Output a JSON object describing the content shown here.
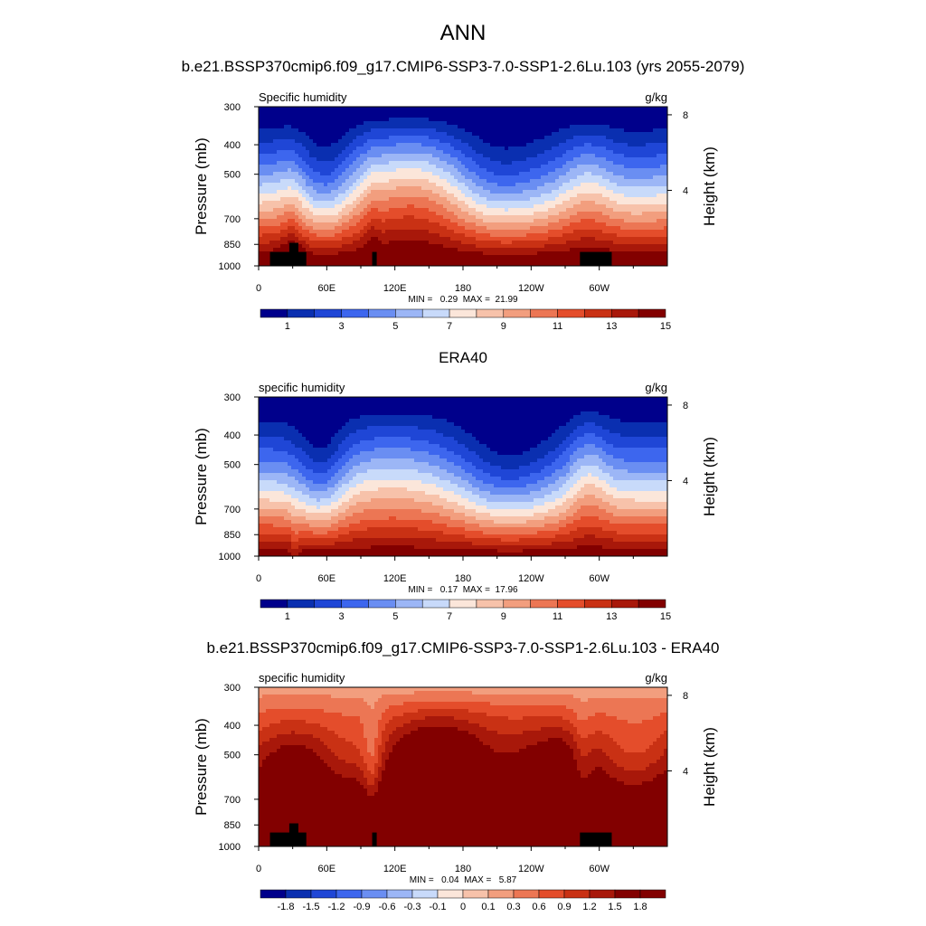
{
  "figure": {
    "title": "ANN"
  },
  "chart_data": [
    {
      "type": "heatmap",
      "panel_title": "b.e21.BSSP370cmip6.f09_g17.CMIP6-SSP3-7.0-SSP1-2.6Lu.103 (yrs 2055-2079)",
      "variable_label": "Specific humidity",
      "units_label": "g/kg",
      "ylabel": "Pressure (mb)",
      "ylabel_right": "Height (km)",
      "y_ticks": [
        "300",
        "400",
        "500",
        "700",
        "850",
        "1000"
      ],
      "y_tick_values": [
        300,
        400,
        500,
        700,
        850,
        1000
      ],
      "y_right_ticks": [
        "8",
        "4"
      ],
      "y_right_tick_values": [
        8,
        4
      ],
      "x_ticks": [
        "0",
        "60E",
        "120E",
        "180",
        "120W",
        "60W"
      ],
      "x_tick_values": [
        0,
        60,
        120,
        180,
        240,
        300
      ],
      "xlim": [
        0,
        360
      ],
      "ylim": [
        1000,
        300
      ],
      "stats_text": "MIN =   0.29  MAX =  21.99",
      "min": 0.29,
      "max": 21.99,
      "colorbar_labels": [
        "1",
        "3",
        "5",
        "7",
        "9",
        "11",
        "13",
        "15"
      ],
      "colorbar_levels": [
        1,
        2,
        3,
        4,
        5,
        6,
        7,
        8,
        9,
        10,
        11,
        12,
        13,
        14,
        15
      ],
      "colors": [
        "#00008b",
        "#0a2fb0",
        "#1f46d6",
        "#3d66ee",
        "#6a8ef2",
        "#9cb6f6",
        "#c8dafa",
        "#fbe6da",
        "#f7c2aa",
        "#f29e7e",
        "#ec7654",
        "#e44d2b",
        "#c93114",
        "#a8180a",
        "#820000"
      ],
      "terrain_mask": true
    },
    {
      "type": "heatmap",
      "panel_title": "ERA40",
      "variable_label": "specific humidity",
      "units_label": "g/kg",
      "ylabel": "Pressure (mb)",
      "ylabel_right": "Height (km)",
      "y_ticks": [
        "300",
        "400",
        "500",
        "700",
        "850",
        "1000"
      ],
      "y_tick_values": [
        300,
        400,
        500,
        700,
        850,
        1000
      ],
      "y_right_ticks": [
        "8",
        "4"
      ],
      "y_right_tick_values": [
        8,
        4
      ],
      "x_ticks": [
        "0",
        "60E",
        "120E",
        "180",
        "120W",
        "60W"
      ],
      "x_tick_values": [
        0,
        60,
        120,
        180,
        240,
        300
      ],
      "xlim": [
        0,
        360
      ],
      "ylim": [
        1000,
        300
      ],
      "stats_text": "MIN =   0.17  MAX =  17.96",
      "min": 0.17,
      "max": 17.96,
      "colorbar_labels": [
        "1",
        "3",
        "5",
        "7",
        "9",
        "11",
        "13",
        "15"
      ],
      "colorbar_levels": [
        1,
        2,
        3,
        4,
        5,
        6,
        7,
        8,
        9,
        10,
        11,
        12,
        13,
        14,
        15
      ],
      "colors": [
        "#00008b",
        "#0a2fb0",
        "#1f46d6",
        "#3d66ee",
        "#6a8ef2",
        "#9cb6f6",
        "#c8dafa",
        "#fbe6da",
        "#f7c2aa",
        "#f29e7e",
        "#ec7654",
        "#e44d2b",
        "#c93114",
        "#a8180a",
        "#820000"
      ],
      "terrain_mask": false
    },
    {
      "type": "heatmap",
      "panel_title": "b.e21.BSSP370cmip6.f09_g17.CMIP6-SSP3-7.0-SSP1-2.6Lu.103 - ERA40",
      "variable_label": "specific humidity",
      "units_label": "g/kg",
      "ylabel": "Pressure (mb)",
      "ylabel_right": "Height (km)",
      "y_ticks": [
        "300",
        "400",
        "500",
        "700",
        "850",
        "1000"
      ],
      "y_tick_values": [
        300,
        400,
        500,
        700,
        850,
        1000
      ],
      "y_right_ticks": [
        "8",
        "4"
      ],
      "y_right_tick_values": [
        8,
        4
      ],
      "x_ticks": [
        "0",
        "60E",
        "120E",
        "180",
        "120W",
        "60W"
      ],
      "x_tick_values": [
        0,
        60,
        120,
        180,
        240,
        300
      ],
      "xlim": [
        0,
        360
      ],
      "ylim": [
        1000,
        300
      ],
      "stats_text": "MIN =   0.04  MAX =   5.87",
      "min": 0.04,
      "max": 5.87,
      "colorbar_labels": [
        "-1.8",
        "-1.5",
        "-1.2",
        "-0.9",
        "-0.6",
        "-0.3",
        "-0.1",
        "0",
        "0.1",
        "0.3",
        "0.6",
        "0.9",
        "1.2",
        "1.5",
        "1.8"
      ],
      "colorbar_levels": [
        -1.8,
        -1.5,
        -1.2,
        -0.9,
        -0.6,
        -0.3,
        -0.1,
        0,
        0.1,
        0.3,
        0.6,
        0.9,
        1.2,
        1.5,
        1.8
      ],
      "colors": [
        "#00008b",
        "#0a2fb0",
        "#1f46d6",
        "#3d66ee",
        "#6a8ef2",
        "#9cb6f6",
        "#c8dafa",
        "#fbe6da",
        "#f7c2aa",
        "#f29e7e",
        "#ec7654",
        "#e44d2b",
        "#c93114",
        "#a8180a",
        "#820000",
        "#820000"
      ],
      "terrain_mask": true
    }
  ]
}
